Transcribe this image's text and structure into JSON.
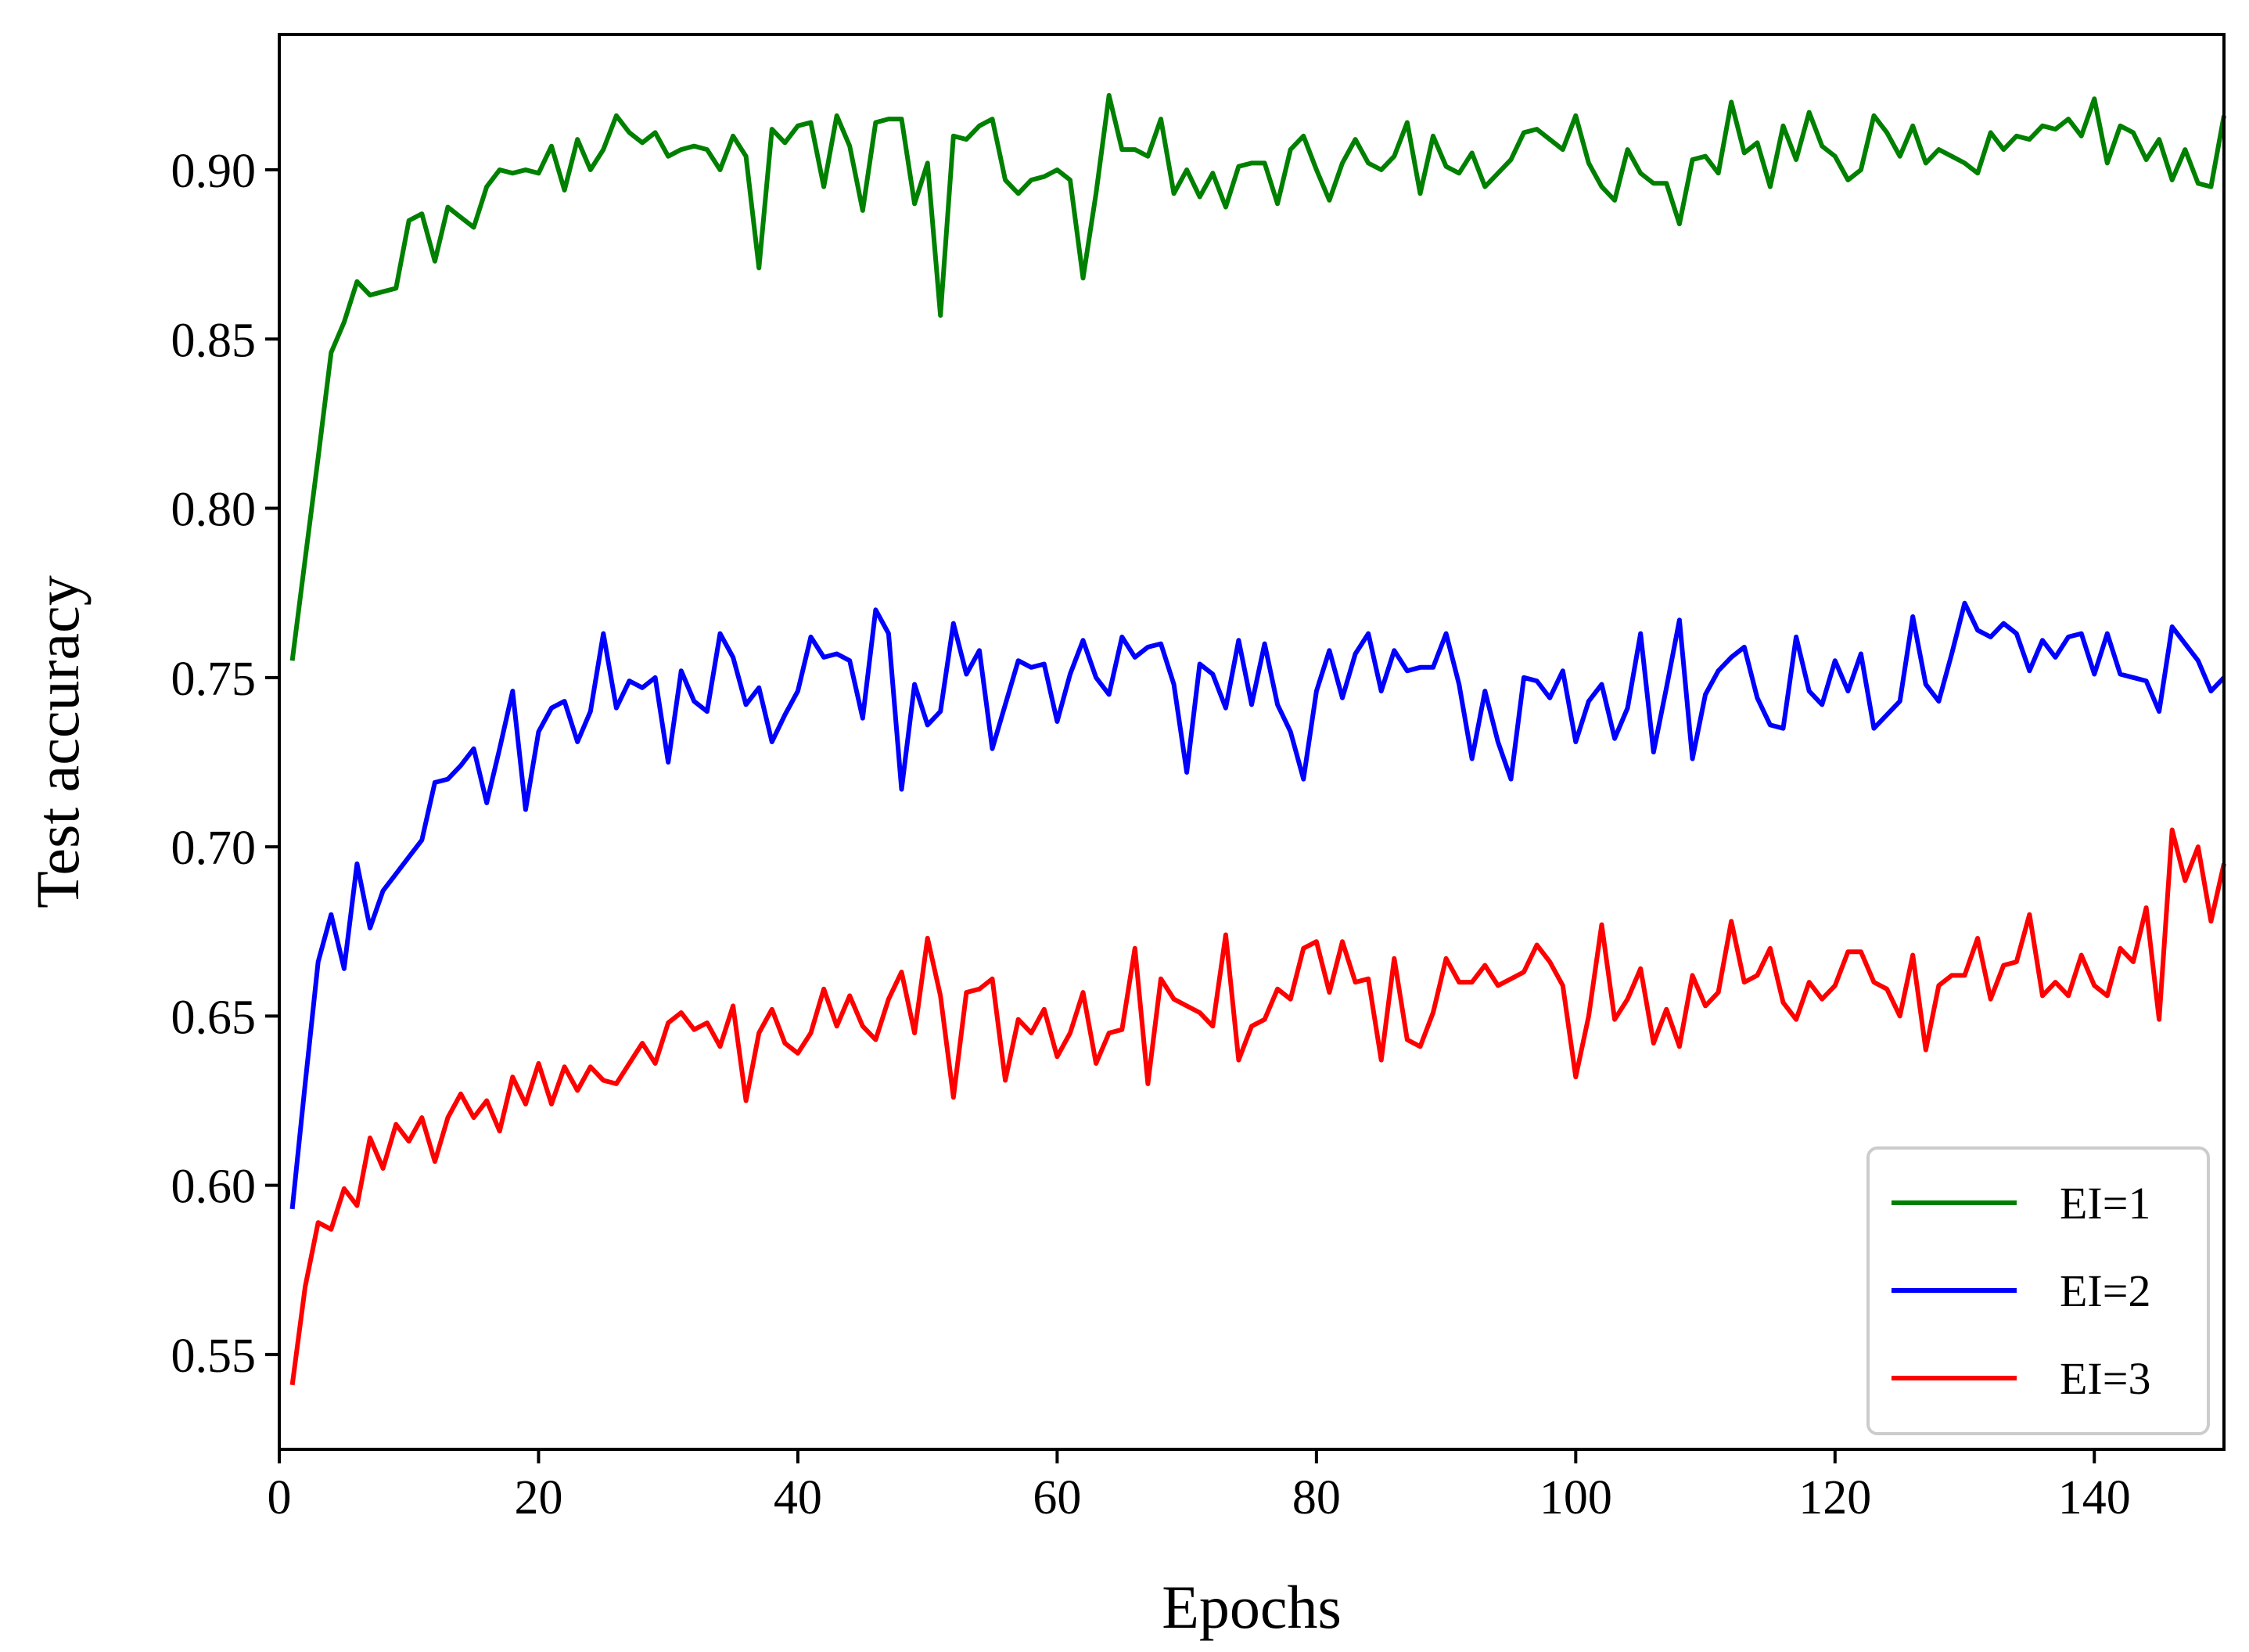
{
  "chart_data": {
    "type": "line",
    "title": "",
    "xlabel": "Epochs",
    "ylabel": "Test accuracy",
    "xlim": [
      0,
      150
    ],
    "ylim": [
      0.522,
      0.94
    ],
    "xticks": [
      0,
      20,
      40,
      60,
      80,
      100,
      120,
      140
    ],
    "xtick_labels": [
      "0",
      "20",
      "40",
      "60",
      "80",
      "100",
      "120",
      "140"
    ],
    "yticks": [
      0.55,
      0.6,
      0.65,
      0.7,
      0.75,
      0.8,
      0.85,
      0.9
    ],
    "ytick_labels": [
      "0.55",
      "0.60",
      "0.65",
      "0.70",
      "0.75",
      "0.80",
      "0.85",
      "0.90"
    ],
    "grid": false,
    "legend_position": "lower-right",
    "x": [
      1,
      2,
      3,
      4,
      5,
      6,
      7,
      8,
      9,
      10,
      11,
      12,
      13,
      14,
      15,
      16,
      17,
      18,
      19,
      20,
      21,
      22,
      23,
      24,
      25,
      26,
      27,
      28,
      29,
      30,
      31,
      32,
      33,
      34,
      35,
      36,
      37,
      38,
      39,
      40,
      41,
      42,
      43,
      44,
      45,
      46,
      47,
      48,
      49,
      50,
      51,
      52,
      53,
      54,
      55,
      56,
      57,
      58,
      59,
      60,
      61,
      62,
      63,
      64,
      65,
      66,
      67,
      68,
      69,
      70,
      71,
      72,
      73,
      74,
      75,
      76,
      77,
      78,
      79,
      80,
      81,
      82,
      83,
      84,
      85,
      86,
      87,
      88,
      89,
      90,
      91,
      92,
      93,
      94,
      95,
      96,
      97,
      98,
      99,
      100,
      101,
      102,
      103,
      104,
      105,
      106,
      107,
      108,
      109,
      110,
      111,
      112,
      113,
      114,
      115,
      116,
      117,
      118,
      119,
      120,
      121,
      122,
      123,
      124,
      125,
      126,
      127,
      128,
      129,
      130,
      131,
      132,
      133,
      134,
      135,
      136,
      137,
      138,
      139,
      140,
      141,
      142,
      143,
      144,
      145,
      146,
      147,
      148,
      149,
      150
    ],
    "series": [
      {
        "name": "EI=1",
        "color": "#008000",
        "values": [
          0.755,
          0.785,
          0.815,
          0.846,
          0.855,
          0.867,
          0.863,
          0.864,
          0.865,
          0.885,
          0.887,
          0.873,
          0.889,
          0.886,
          0.883,
          0.895,
          0.9,
          0.899,
          0.9,
          0.899,
          0.907,
          0.894,
          0.909,
          0.9,
          0.906,
          0.916,
          0.911,
          0.908,
          0.911,
          0.904,
          0.906,
          0.907,
          0.906,
          0.9,
          0.91,
          0.904,
          0.871,
          0.912,
          0.908,
          0.913,
          0.914,
          0.895,
          0.916,
          0.907,
          0.888,
          0.914,
          0.915,
          0.915,
          0.89,
          0.902,
          0.857,
          0.91,
          0.909,
          0.913,
          0.915,
          0.897,
          0.893,
          0.897,
          0.898,
          0.9,
          0.897,
          0.868,
          0.893,
          0.922,
          0.906,
          0.906,
          0.904,
          0.915,
          0.893,
          0.9,
          0.892,
          0.899,
          0.889,
          0.901,
          0.902,
          0.902,
          0.89,
          0.906,
          0.91,
          0.9,
          0.891,
          0.902,
          0.909,
          0.902,
          0.9,
          0.904,
          0.914,
          0.893,
          0.91,
          0.901,
          0.899,
          0.905,
          0.895,
          0.899,
          0.903,
          0.911,
          0.912,
          0.909,
          0.906,
          0.916,
          0.902,
          0.895,
          0.891,
          0.906,
          0.899,
          0.896,
          0.896,
          0.884,
          0.903,
          0.904,
          0.899,
          0.92,
          0.905,
          0.908,
          0.895,
          0.913,
          0.903,
          0.917,
          0.907,
          0.904,
          0.897,
          0.9,
          0.916,
          0.911,
          0.904,
          0.913,
          0.902,
          0.906,
          0.904,
          0.902,
          0.899,
          0.911,
          0.906,
          0.91,
          0.909,
          0.913,
          0.912,
          0.915,
          0.91,
          0.921,
          0.902,
          0.913,
          0.911,
          0.903,
          0.909,
          0.897,
          0.906,
          0.896,
          0.895,
          0.916
        ]
      },
      {
        "name": "EI=2",
        "color": "#0000ff",
        "values": [
          0.593,
          0.63,
          0.666,
          0.68,
          0.664,
          0.695,
          0.676,
          0.687,
          0.692,
          0.697,
          0.702,
          0.719,
          0.72,
          0.724,
          0.729,
          0.713,
          0.729,
          0.746,
          0.711,
          0.734,
          0.741,
          0.743,
          0.731,
          0.74,
          0.763,
          0.741,
          0.749,
          0.747,
          0.75,
          0.725,
          0.752,
          0.743,
          0.74,
          0.763,
          0.756,
          0.742,
          0.747,
          0.731,
          0.739,
          0.746,
          0.762,
          0.756,
          0.757,
          0.755,
          0.738,
          0.77,
          0.763,
          0.717,
          0.748,
          0.736,
          0.74,
          0.766,
          0.751,
          0.758,
          0.729,
          0.742,
          0.755,
          0.753,
          0.754,
          0.737,
          0.751,
          0.761,
          0.75,
          0.745,
          0.762,
          0.756,
          0.759,
          0.76,
          0.748,
          0.722,
          0.754,
          0.751,
          0.741,
          0.761,
          0.742,
          0.76,
          0.742,
          0.734,
          0.72,
          0.746,
          0.758,
          0.744,
          0.757,
          0.763,
          0.746,
          0.758,
          0.752,
          0.753,
          0.753,
          0.763,
          0.748,
          0.726,
          0.746,
          0.731,
          0.72,
          0.75,
          0.749,
          0.744,
          0.752,
          0.731,
          0.743,
          0.748,
          0.732,
          0.741,
          0.763,
          0.728,
          0.747,
          0.767,
          0.726,
          0.745,
          0.752,
          0.756,
          0.759,
          0.744,
          0.736,
          0.735,
          0.762,
          0.746,
          0.742,
          0.755,
          0.746,
          0.757,
          0.735,
          0.739,
          0.743,
          0.768,
          0.748,
          0.743,
          0.757,
          0.772,
          0.764,
          0.762,
          0.766,
          0.763,
          0.752,
          0.761,
          0.756,
          0.762,
          0.763,
          0.751,
          0.763,
          0.751,
          0.75,
          0.749,
          0.74,
          0.765,
          0.76,
          0.755,
          0.746,
          0.75
        ]
      },
      {
        "name": "EI=3",
        "color": "#ff0000",
        "values": [
          0.541,
          0.57,
          0.589,
          0.587,
          0.599,
          0.594,
          0.614,
          0.605,
          0.618,
          0.613,
          0.62,
          0.607,
          0.62,
          0.627,
          0.62,
          0.625,
          0.616,
          0.632,
          0.624,
          0.636,
          0.624,
          0.635,
          0.628,
          0.635,
          0.631,
          0.63,
          0.636,
          0.642,
          0.636,
          0.648,
          0.651,
          0.646,
          0.648,
          0.641,
          0.653,
          0.625,
          0.645,
          0.652,
          0.642,
          0.639,
          0.645,
          0.658,
          0.647,
          0.656,
          0.647,
          0.643,
          0.655,
          0.663,
          0.645,
          0.673,
          0.656,
          0.626,
          0.657,
          0.658,
          0.661,
          0.631,
          0.649,
          0.645,
          0.652,
          0.638,
          0.645,
          0.657,
          0.636,
          0.645,
          0.646,
          0.67,
          0.63,
          0.661,
          0.655,
          0.653,
          0.651,
          0.647,
          0.674,
          0.637,
          0.647,
          0.649,
          0.658,
          0.655,
          0.67,
          0.672,
          0.657,
          0.672,
          0.66,
          0.661,
          0.637,
          0.667,
          0.643,
          0.641,
          0.651,
          0.667,
          0.66,
          0.66,
          0.665,
          0.659,
          0.661,
          0.663,
          0.671,
          0.666,
          0.659,
          0.632,
          0.65,
          0.677,
          0.649,
          0.655,
          0.664,
          0.642,
          0.652,
          0.641,
          0.662,
          0.653,
          0.657,
          0.678,
          0.66,
          0.662,
          0.67,
          0.654,
          0.649,
          0.66,
          0.655,
          0.659,
          0.669,
          0.669,
          0.66,
          0.658,
          0.65,
          0.668,
          0.64,
          0.659,
          0.662,
          0.662,
          0.673,
          0.655,
          0.665,
          0.666,
          0.68,
          0.656,
          0.66,
          0.656,
          0.668,
          0.659,
          0.656,
          0.67,
          0.666,
          0.682,
          0.649,
          0.705,
          0.69,
          0.7,
          0.678,
          0.695
        ]
      }
    ]
  }
}
